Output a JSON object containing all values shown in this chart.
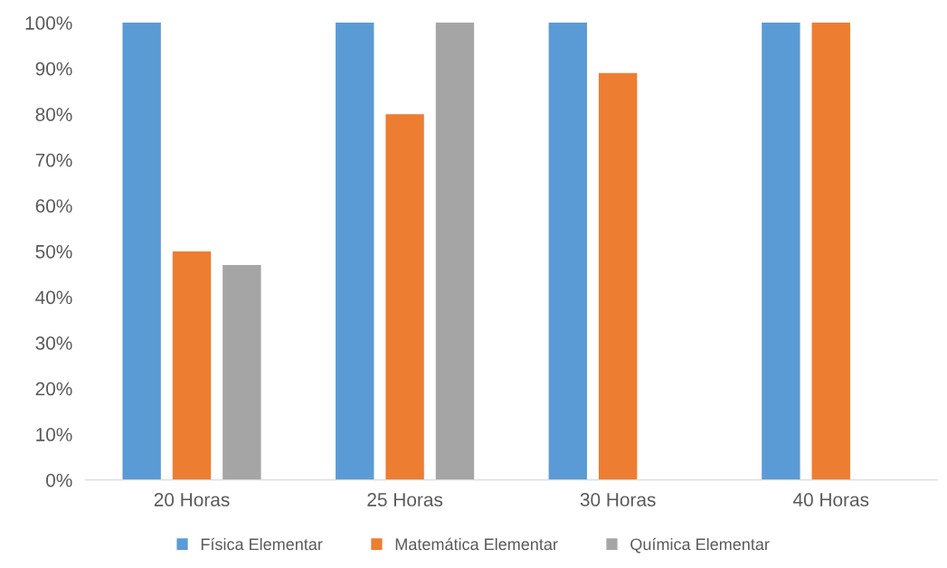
{
  "chart_data": {
    "type": "bar",
    "categories": [
      "20 Horas",
      "25 Horas",
      "30 Horas",
      "40 Horas"
    ],
    "series": [
      {
        "name": "Física Elementar",
        "color": "#5b9bd5",
        "values": [
          100,
          100,
          100,
          100
        ]
      },
      {
        "name": "Matemática Elementar",
        "color": "#ed7d31",
        "values": [
          50,
          80,
          89,
          100
        ]
      },
      {
        "name": "Química Elementar",
        "color": "#a5a5a5",
        "values": [
          47,
          100,
          null,
          null
        ]
      }
    ],
    "ylim": [
      0,
      100
    ],
    "yticks": [
      {
        "value": 0,
        "label": "0%"
      },
      {
        "value": 10,
        "label": "10%"
      },
      {
        "value": 20,
        "label": "20%"
      },
      {
        "value": 30,
        "label": "30%"
      },
      {
        "value": 40,
        "label": "40%"
      },
      {
        "value": 50,
        "label": "50%"
      },
      {
        "value": 60,
        "label": "60%"
      },
      {
        "value": 70,
        "label": "70%"
      },
      {
        "value": 80,
        "label": "80%"
      },
      {
        "value": 90,
        "label": "90%"
      },
      {
        "value": 100,
        "label": "100%"
      }
    ],
    "legend": "bottom"
  }
}
